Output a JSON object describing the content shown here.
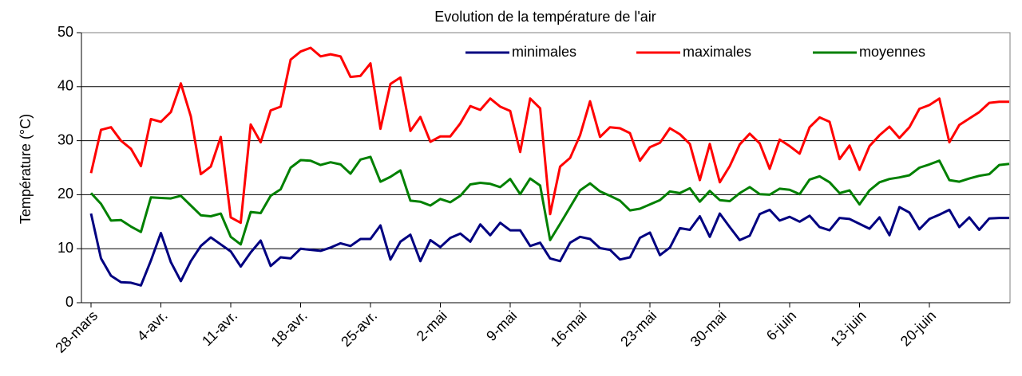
{
  "chart_data": {
    "type": "line",
    "title": "Evolution de la température de l'air",
    "ylabel": "Température (°C)",
    "ylim": [
      0,
      50
    ],
    "yticks": [
      0,
      10,
      20,
      30,
      40,
      50
    ],
    "grid": true,
    "legend": "top-right",
    "categories": [
      "28-mars",
      null,
      null,
      null,
      null,
      null,
      null,
      "4-avr.",
      null,
      null,
      null,
      null,
      null,
      null,
      "11-avr.",
      null,
      null,
      null,
      null,
      null,
      null,
      "18-avr.",
      null,
      null,
      null,
      null,
      null,
      null,
      "25-avr.",
      null,
      null,
      null,
      null,
      null,
      null,
      "2-mai",
      null,
      null,
      null,
      null,
      null,
      null,
      "9-mai",
      null,
      null,
      null,
      null,
      null,
      null,
      "16-mai",
      null,
      null,
      null,
      null,
      null,
      null,
      "23-mai",
      null,
      null,
      null,
      null,
      null,
      null,
      "30-mai",
      null,
      null,
      null,
      null,
      null,
      null,
      "6-juin",
      null,
      null,
      null,
      null,
      null,
      null,
      "13-juin",
      null,
      null,
      null,
      null,
      null,
      null,
      "20-juin",
      null,
      null,
      null,
      null,
      null,
      null,
      null,
      null
    ],
    "series": [
      {
        "name": "minimales",
        "color": "#000080",
        "values": [
          16.5,
          8.2,
          5,
          3.8,
          3.7,
          3.2,
          7.8,
          12.9,
          7.5,
          4,
          7.7,
          10.5,
          12.1,
          10.8,
          9.5,
          6.7,
          9.3,
          11.5,
          6.8,
          8.4,
          8.2,
          10,
          9.8,
          9.6,
          10.2,
          11,
          10.5,
          11.8,
          11.8,
          14.3,
          8,
          11.3,
          12.6,
          7.7,
          11.6,
          10.3,
          12,
          12.8,
          11.3,
          14.5,
          12.5,
          14.8,
          13.4,
          13.4,
          10.5,
          11.1,
          8.2,
          7.7,
          11.1,
          12.2,
          11.8,
          10.1,
          9.8,
          8,
          8.4,
          12,
          13,
          8.8,
          10.2,
          13.8,
          13.5,
          16,
          12.2,
          16.5,
          14,
          11.6,
          12.4,
          16.4,
          17.2,
          15.2,
          15.9,
          15,
          16.1,
          14,
          13.4,
          15.7,
          15.5,
          14.6,
          13.7,
          15.8,
          12.5,
          17.7,
          16.7,
          13.6,
          15.5,
          16.3,
          17.2,
          14,
          15.8,
          13.5,
          15.6,
          15.7,
          15.7
        ]
      },
      {
        "name": "maximales",
        "color": "#ff0000",
        "values": [
          24,
          32,
          32.5,
          30,
          28.5,
          25.3,
          34,
          33.5,
          35.3,
          40.6,
          34.5,
          23.8,
          25.2,
          30.7,
          15.8,
          14.8,
          33,
          29.7,
          35.6,
          36.3,
          45,
          46.5,
          47.2,
          45.6,
          46,
          45.6,
          41.8,
          42,
          44.3,
          32.2,
          40.5,
          41.7,
          31.8,
          34.4,
          29.8,
          30.8,
          30.8,
          33.2,
          36.4,
          35.7,
          37.8,
          36.3,
          35.5,
          27.9,
          37.8,
          36,
          16.4,
          25.2,
          26.8,
          31,
          37.3,
          30.7,
          32.5,
          32.3,
          31.4,
          26.3,
          28.8,
          29.6,
          32.3,
          31.2,
          29.4,
          22.7,
          29.4,
          22.3,
          25.3,
          29.3,
          31.3,
          29.5,
          24.8,
          30.2,
          29,
          27.6,
          32.5,
          34.3,
          33.5,
          26.6,
          29.1,
          24.6,
          29,
          31,
          32.6,
          30.5,
          32.5,
          35.9,
          36.6,
          37.8,
          29.7,
          32.9,
          34.1,
          35.3,
          37,
          37.2,
          37.2
        ]
      },
      {
        "name": "moyennes",
        "color": "#008000",
        "values": [
          20.3,
          18.3,
          15.2,
          15.3,
          14.1,
          13.1,
          19.5,
          19.4,
          19.3,
          19.8,
          18,
          16.2,
          16,
          16.5,
          12.2,
          10.8,
          16.8,
          16.6,
          19.8,
          21,
          25,
          26.4,
          26.3,
          25.5,
          26,
          25.6,
          23.9,
          26.5,
          27,
          22.4,
          23.3,
          24.5,
          18.9,
          18.7,
          18,
          19.2,
          18.6,
          19.8,
          21.9,
          22.2,
          22,
          21.4,
          22.9,
          20.1,
          23,
          21.7,
          11.6,
          14.6,
          17.7,
          20.8,
          22.1,
          20.6,
          19.8,
          18.9,
          17.1,
          17.4,
          18.2,
          19,
          20.6,
          20.3,
          21.2,
          18.7,
          20.7,
          19,
          18.8,
          20.3,
          21.4,
          20.1,
          20,
          21.1,
          20.9,
          20.1,
          22.8,
          23.4,
          22.3,
          20.3,
          20.8,
          18.2,
          20.8,
          22.3,
          22.9,
          23.2,
          23.6,
          25,
          25.6,
          26.3,
          22.7,
          22.4,
          23,
          23.5,
          23.8,
          25.5,
          25.7
        ]
      }
    ]
  }
}
